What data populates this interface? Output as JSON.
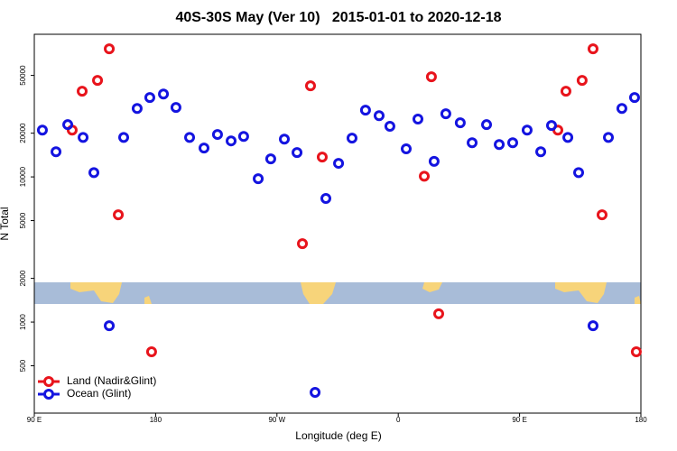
{
  "chart_data": {
    "type": "scatter",
    "title": "40S-30S May (Ver 10)   2015-01-01 to 2020-12-18",
    "x_label": "Longitude (deg E)",
    "y_label": "N Total",
    "xlim": [
      90,
      540
    ],
    "xticks": [
      {
        "value": 90,
        "label": "90 E"
      },
      180,
      {
        "value": 270,
        "label": "90 W"
      },
      {
        "value": 360,
        "label": "0"
      },
      {
        "value": 450,
        "label": "90 E"
      },
      {
        "value": 540,
        "label": "180"
      }
    ],
    "ylim": [
      236,
      96000
    ],
    "ylog": true,
    "yticks": [
      500,
      1000,
      2000,
      5000,
      10000,
      20000,
      50000
    ],
    "legend": "lower left",
    "series": [
      {
        "name": "Land (Nadir&Glint)",
        "color": "#e8141c",
        "x": [
          118.1,
          125.5,
          136.9,
          145.6,
          152.3,
          177.0,
          288.9,
          294.9,
          303.6,
          379.3,
          384.6,
          390.0,
          478.4,
          484.4,
          496.4,
          504.5,
          511.2,
          536.6
        ],
        "values": [
          21000,
          38900,
          46200,
          76200,
          5480,
          624,
          3470,
          42400,
          13700,
          10100,
          48900,
          1140,
          21000,
          38900,
          46200,
          76200,
          5480,
          624
        ]
      },
      {
        "name": "Ocean (Glint)",
        "color": "#1414e0",
        "x": [
          96.0,
          106.1,
          114.8,
          126.2,
          134.2,
          145.6,
          156.3,
          166.3,
          175.7,
          185.8,
          195.1,
          205.2,
          215.9,
          225.9,
          236.0,
          245.3,
          256.1,
          265.4,
          275.5,
          284.9,
          298.3,
          306.3,
          315.7,
          325.7,
          335.7,
          345.8,
          353.8,
          365.9,
          374.6,
          386.6,
          395.3,
          406.0,
          414.8,
          425.5,
          434.9,
          444.9,
          455.6,
          465.7,
          473.7,
          485.8,
          493.8,
          504.5,
          515.9,
          525.9,
          535.3
        ],
        "values": [
          21000,
          14900,
          22900,
          18700,
          10700,
          944,
          18700,
          29600,
          35200,
          37200,
          30100,
          18700,
          15800,
          19600,
          17700,
          19000,
          9720,
          13300,
          18200,
          14700,
          328,
          7100,
          12400,
          18500,
          28800,
          26400,
          22300,
          15600,
          25000,
          12800,
          27200,
          23600,
          17200,
          22900,
          16700,
          17200,
          21000,
          14900,
          22600,
          18700,
          10700,
          944,
          18700,
          29600,
          35200
        ]
      }
    ]
  }
}
